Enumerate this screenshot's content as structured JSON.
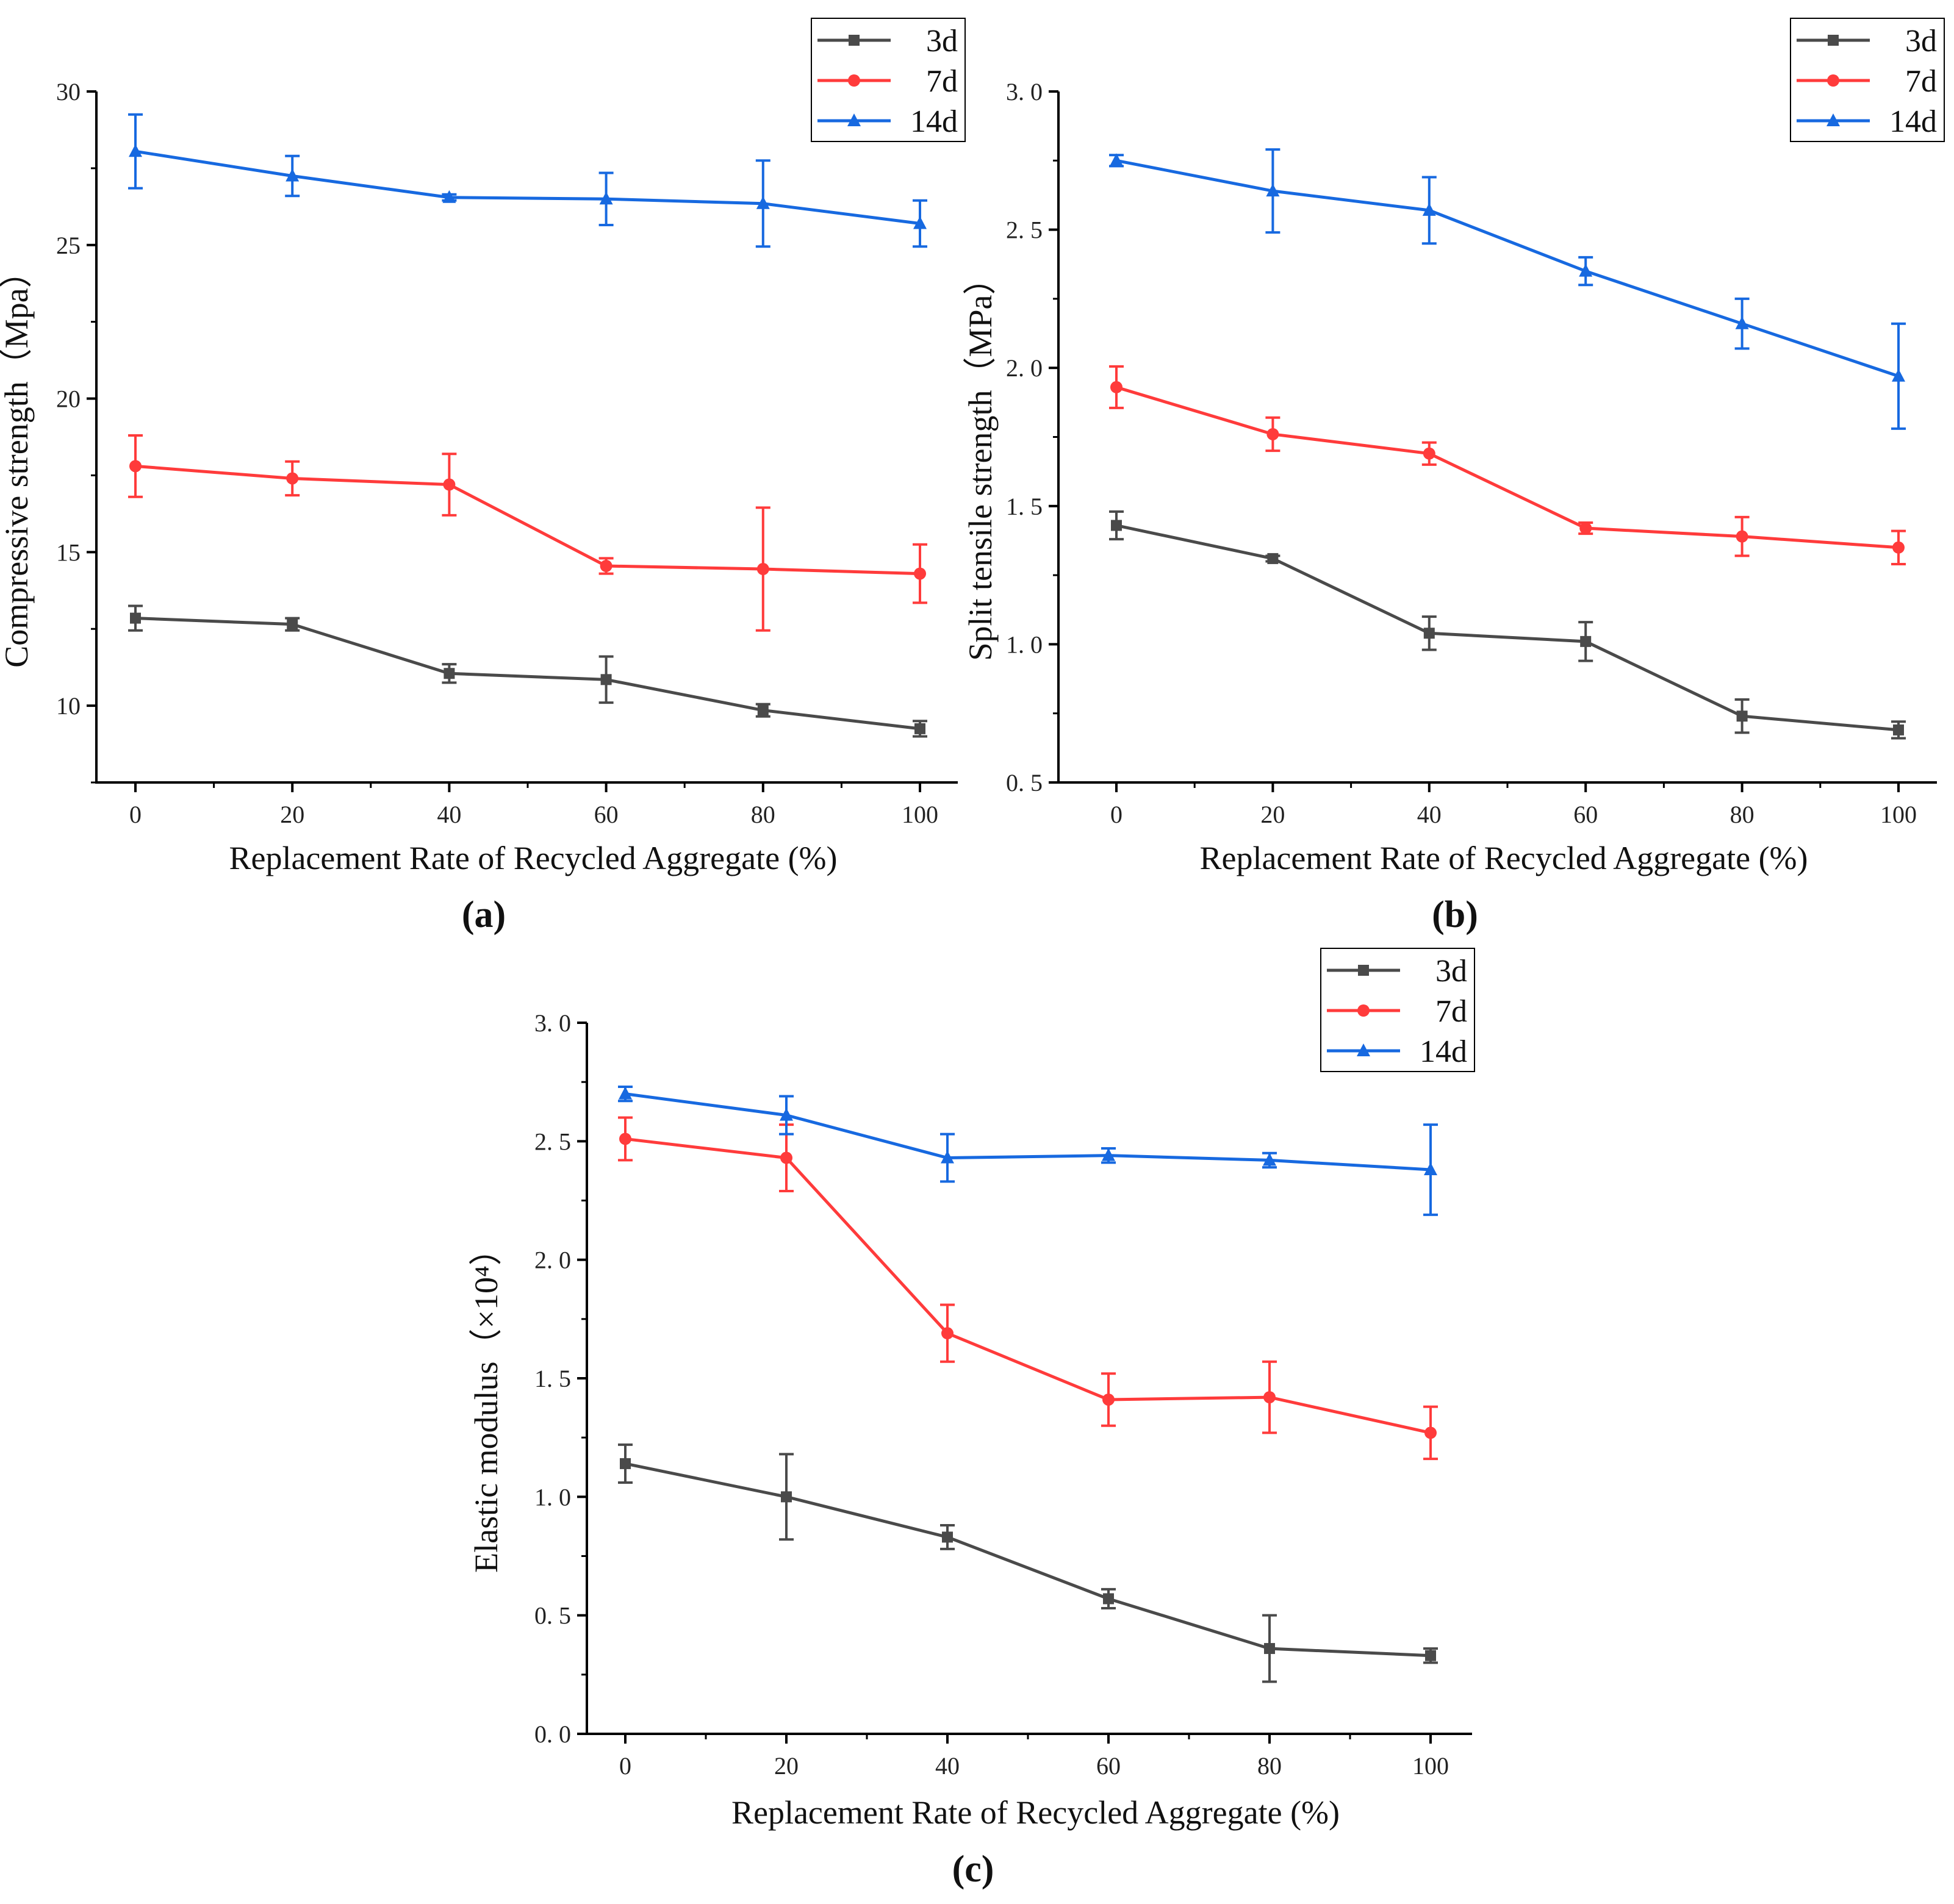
{
  "chart_data": [
    {
      "type": "line",
      "panel_label": "(a)",
      "xlabel": "Replacement Rate of Recycled Aggregate (%)",
      "ylabel": "Compressive strength（Mpa）",
      "x": [
        0,
        20,
        40,
        60,
        80,
        100
      ],
      "xticks": [
        "0",
        "20",
        "40",
        "60",
        "80",
        "100"
      ],
      "ylim": [
        7.5,
        30
      ],
      "yticks": [
        10,
        15,
        20,
        25,
        30
      ],
      "ytick_labels": [
        "10",
        "15",
        "20",
        "25",
        "30"
      ],
      "grid": false,
      "legend_position": "top-right",
      "series": [
        {
          "name": "3d",
          "color": "#4a4a4a",
          "marker": "square",
          "values": [
            12.85,
            12.65,
            11.05,
            10.85,
            9.85,
            9.25
          ],
          "errors": [
            0.4,
            0.2,
            0.3,
            0.75,
            0.2,
            0.25
          ]
        },
        {
          "name": "7d",
          "color": "#ff3b3b",
          "marker": "circle",
          "values": [
            17.8,
            17.4,
            17.2,
            14.55,
            14.45,
            14.3
          ],
          "errors": [
            1.0,
            0.55,
            1.0,
            0.25,
            2.0,
            0.95
          ]
        },
        {
          "name": "14d",
          "color": "#1769e0",
          "marker": "triangle",
          "values": [
            28.05,
            27.25,
            26.55,
            26.5,
            26.35,
            25.7
          ],
          "errors": [
            1.2,
            0.65,
            0.1,
            0.85,
            1.4,
            0.75
          ]
        }
      ]
    },
    {
      "type": "line",
      "panel_label": "(b)",
      "xlabel": "Replacement Rate of Recycled Aggregate (%)",
      "ylabel": "Split tensile strength（MPa）",
      "x": [
        0,
        20,
        40,
        60,
        80,
        100
      ],
      "xticks": [
        "0",
        "20",
        "40",
        "60",
        "80",
        "100"
      ],
      "ylim": [
        0.5,
        3.0
      ],
      "yticks": [
        0.5,
        1.0,
        1.5,
        2.0,
        2.5,
        3.0
      ],
      "ytick_labels": [
        "0. 5",
        "1. 0",
        "1. 5",
        "2. 0",
        "2. 5",
        "3. 0"
      ],
      "grid": false,
      "legend_position": "top-right",
      "series": [
        {
          "name": "3d",
          "color": "#4a4a4a",
          "marker": "square",
          "values": [
            1.43,
            1.31,
            1.04,
            1.01,
            0.74,
            0.69
          ],
          "errors": [
            0.05,
            0.01,
            0.06,
            0.07,
            0.06,
            0.03
          ]
        },
        {
          "name": "7d",
          "color": "#ff3b3b",
          "marker": "circle",
          "values": [
            1.93,
            1.76,
            1.69,
            1.42,
            1.39,
            1.35
          ],
          "errors": [
            0.075,
            0.06,
            0.04,
            0.02,
            0.07,
            0.06
          ]
        },
        {
          "name": "14d",
          "color": "#1769e0",
          "marker": "triangle",
          "values": [
            2.75,
            2.64,
            2.57,
            2.35,
            2.16,
            1.97
          ],
          "errors": [
            0.02,
            0.15,
            0.12,
            0.05,
            0.09,
            0.19
          ]
        }
      ]
    },
    {
      "type": "line",
      "panel_label": "(c)",
      "xlabel": "Replacement Rate of Recycled Aggregate (%)",
      "ylabel": "Elastic modulus（×10⁴）",
      "x": [
        0,
        20,
        40,
        60,
        80,
        100
      ],
      "xticks": [
        "0",
        "20",
        "40",
        "60",
        "80",
        "100"
      ],
      "ylim": [
        0,
        3.0
      ],
      "yticks": [
        0,
        0.5,
        1.0,
        1.5,
        2.0,
        2.5,
        3.0
      ],
      "ytick_labels": [
        "0. 0",
        "0. 5",
        "1. 0",
        "1. 5",
        "2. 0",
        "2. 5",
        "3. 0"
      ],
      "grid": false,
      "legend_position": "top-right",
      "series": [
        {
          "name": "3d",
          "color": "#4a4a4a",
          "marker": "square",
          "values": [
            1.14,
            1.0,
            0.83,
            0.57,
            0.36,
            0.33
          ],
          "errors": [
            0.08,
            0.18,
            0.05,
            0.04,
            0.14,
            0.03
          ]
        },
        {
          "name": "7d",
          "color": "#ff3b3b",
          "marker": "circle",
          "values": [
            2.51,
            2.43,
            1.69,
            1.41,
            1.42,
            1.27
          ],
          "errors": [
            0.09,
            0.14,
            0.12,
            0.11,
            0.15,
            0.11
          ]
        },
        {
          "name": "14d",
          "color": "#1769e0",
          "marker": "triangle",
          "values": [
            2.7,
            2.61,
            2.43,
            2.44,
            2.42,
            2.38
          ],
          "errors": [
            0.03,
            0.08,
            0.1,
            0.03,
            0.03,
            0.19
          ]
        }
      ]
    }
  ]
}
